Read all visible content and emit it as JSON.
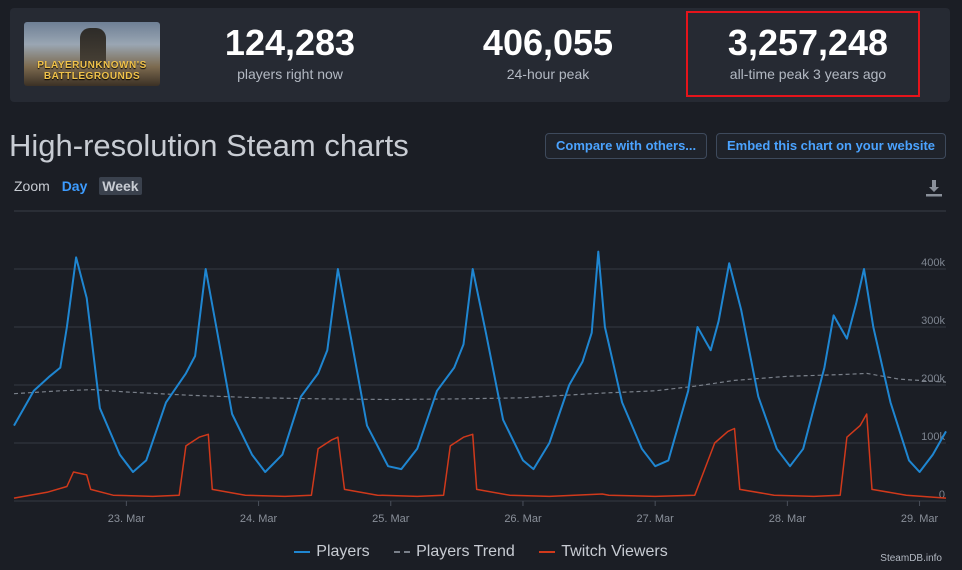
{
  "stats": {
    "current": {
      "value": "124,283",
      "label": "players right now"
    },
    "peak24": {
      "value": "406,055",
      "label": "24-hour peak"
    },
    "alltime": {
      "value": "3,257,248",
      "label": "all-time peak 3 years ago"
    },
    "game_logo_text": "PLAYERUNKNOWN'S BATTLEGROUNDS"
  },
  "header": {
    "title": "High-resolution Steam charts",
    "compare_label": "Compare with others...",
    "embed_label": "Embed this chart on your website"
  },
  "zoom": {
    "label": "Zoom",
    "day": "Day",
    "week": "Week"
  },
  "colors": {
    "players": "#1f86d1",
    "trend": "#7a808a",
    "twitch": "#d0391b"
  },
  "credit": "SteamDB.info",
  "chart_data": {
    "type": "line",
    "x_ticks": [
      "23. Mar",
      "24. Mar",
      "25. Mar",
      "26. Mar",
      "27. Mar",
      "28. Mar",
      "29. Mar"
    ],
    "y_ticks": [
      "0",
      "100k",
      "200k",
      "300k",
      "400k"
    ],
    "ylim": [
      0,
      450000
    ],
    "xlim": [
      22.15,
      29.2
    ],
    "legend": "bottom",
    "series": [
      {
        "name": "Players",
        "points": [
          [
            22.15,
            130000
          ],
          [
            22.3,
            190000
          ],
          [
            22.42,
            215000
          ],
          [
            22.5,
            230000
          ],
          [
            22.55,
            300000
          ],
          [
            22.62,
            420000
          ],
          [
            22.7,
            350000
          ],
          [
            22.8,
            160000
          ],
          [
            22.95,
            80000
          ],
          [
            23.05,
            50000
          ],
          [
            23.15,
            70000
          ],
          [
            23.3,
            170000
          ],
          [
            23.45,
            220000
          ],
          [
            23.52,
            250000
          ],
          [
            23.6,
            400000
          ],
          [
            23.68,
            300000
          ],
          [
            23.8,
            150000
          ],
          [
            23.95,
            80000
          ],
          [
            24.05,
            50000
          ],
          [
            24.18,
            80000
          ],
          [
            24.32,
            180000
          ],
          [
            24.45,
            220000
          ],
          [
            24.52,
            260000
          ],
          [
            24.6,
            400000
          ],
          [
            24.7,
            280000
          ],
          [
            24.82,
            130000
          ],
          [
            24.98,
            60000
          ],
          [
            25.08,
            55000
          ],
          [
            25.2,
            90000
          ],
          [
            25.35,
            190000
          ],
          [
            25.48,
            230000
          ],
          [
            25.55,
            270000
          ],
          [
            25.62,
            400000
          ],
          [
            25.72,
            290000
          ],
          [
            25.85,
            140000
          ],
          [
            26.0,
            70000
          ],
          [
            26.08,
            55000
          ],
          [
            26.2,
            100000
          ],
          [
            26.35,
            200000
          ],
          [
            26.45,
            240000
          ],
          [
            26.52,
            290000
          ],
          [
            26.57,
            430000
          ],
          [
            26.62,
            300000
          ],
          [
            26.65,
            270000
          ],
          [
            26.75,
            170000
          ],
          [
            26.9,
            90000
          ],
          [
            27.0,
            60000
          ],
          [
            27.1,
            70000
          ],
          [
            27.25,
            190000
          ],
          [
            27.32,
            300000
          ],
          [
            27.42,
            260000
          ],
          [
            27.48,
            310000
          ],
          [
            27.56,
            410000
          ],
          [
            27.65,
            330000
          ],
          [
            27.78,
            180000
          ],
          [
            27.92,
            90000
          ],
          [
            28.02,
            60000
          ],
          [
            28.12,
            90000
          ],
          [
            28.28,
            230000
          ],
          [
            28.35,
            320000
          ],
          [
            28.45,
            280000
          ],
          [
            28.52,
            340000
          ],
          [
            28.58,
            400000
          ],
          [
            28.65,
            300000
          ],
          [
            28.78,
            170000
          ],
          [
            28.92,
            70000
          ],
          [
            29.0,
            50000
          ],
          [
            29.1,
            80000
          ],
          [
            29.2,
            120000
          ]
        ]
      },
      {
        "name": "Players Trend",
        "points": [
          [
            22.15,
            185000
          ],
          [
            22.5,
            190000
          ],
          [
            22.75,
            192000
          ],
          [
            23.0,
            188000
          ],
          [
            23.5,
            182000
          ],
          [
            24.0,
            178000
          ],
          [
            24.5,
            176000
          ],
          [
            25.0,
            175000
          ],
          [
            25.5,
            176000
          ],
          [
            26.0,
            178000
          ],
          [
            26.3,
            182000
          ],
          [
            26.6,
            186000
          ],
          [
            27.0,
            190000
          ],
          [
            27.3,
            198000
          ],
          [
            27.6,
            208000
          ],
          [
            28.0,
            215000
          ],
          [
            28.4,
            218000
          ],
          [
            28.6,
            220000
          ],
          [
            28.85,
            210000
          ],
          [
            29.2,
            205000
          ]
        ]
      },
      {
        "name": "Twitch Viewers",
        "points": [
          [
            22.15,
            5000
          ],
          [
            22.4,
            15000
          ],
          [
            22.55,
            25000
          ],
          [
            22.6,
            50000
          ],
          [
            22.7,
            45000
          ],
          [
            22.73,
            20000
          ],
          [
            22.9,
            10000
          ],
          [
            23.2,
            8000
          ],
          [
            23.4,
            10000
          ],
          [
            23.45,
            95000
          ],
          [
            23.55,
            110000
          ],
          [
            23.62,
            115000
          ],
          [
            23.65,
            20000
          ],
          [
            23.9,
            10000
          ],
          [
            24.2,
            8000
          ],
          [
            24.4,
            10000
          ],
          [
            24.45,
            90000
          ],
          [
            24.55,
            105000
          ],
          [
            24.6,
            110000
          ],
          [
            24.65,
            20000
          ],
          [
            24.9,
            10000
          ],
          [
            25.2,
            8000
          ],
          [
            25.4,
            10000
          ],
          [
            25.45,
            95000
          ],
          [
            25.55,
            110000
          ],
          [
            25.62,
            115000
          ],
          [
            25.65,
            20000
          ],
          [
            25.9,
            10000
          ],
          [
            26.2,
            8000
          ],
          [
            26.6,
            12000
          ],
          [
            26.65,
            10000
          ],
          [
            27.0,
            8000
          ],
          [
            27.3,
            10000
          ],
          [
            27.45,
            100000
          ],
          [
            27.55,
            120000
          ],
          [
            27.6,
            125000
          ],
          [
            27.64,
            20000
          ],
          [
            27.9,
            10000
          ],
          [
            28.2,
            8000
          ],
          [
            28.4,
            10000
          ],
          [
            28.45,
            110000
          ],
          [
            28.55,
            130000
          ],
          [
            28.6,
            150000
          ],
          [
            28.64,
            20000
          ],
          [
            28.9,
            10000
          ],
          [
            29.2,
            5000
          ]
        ]
      }
    ]
  }
}
